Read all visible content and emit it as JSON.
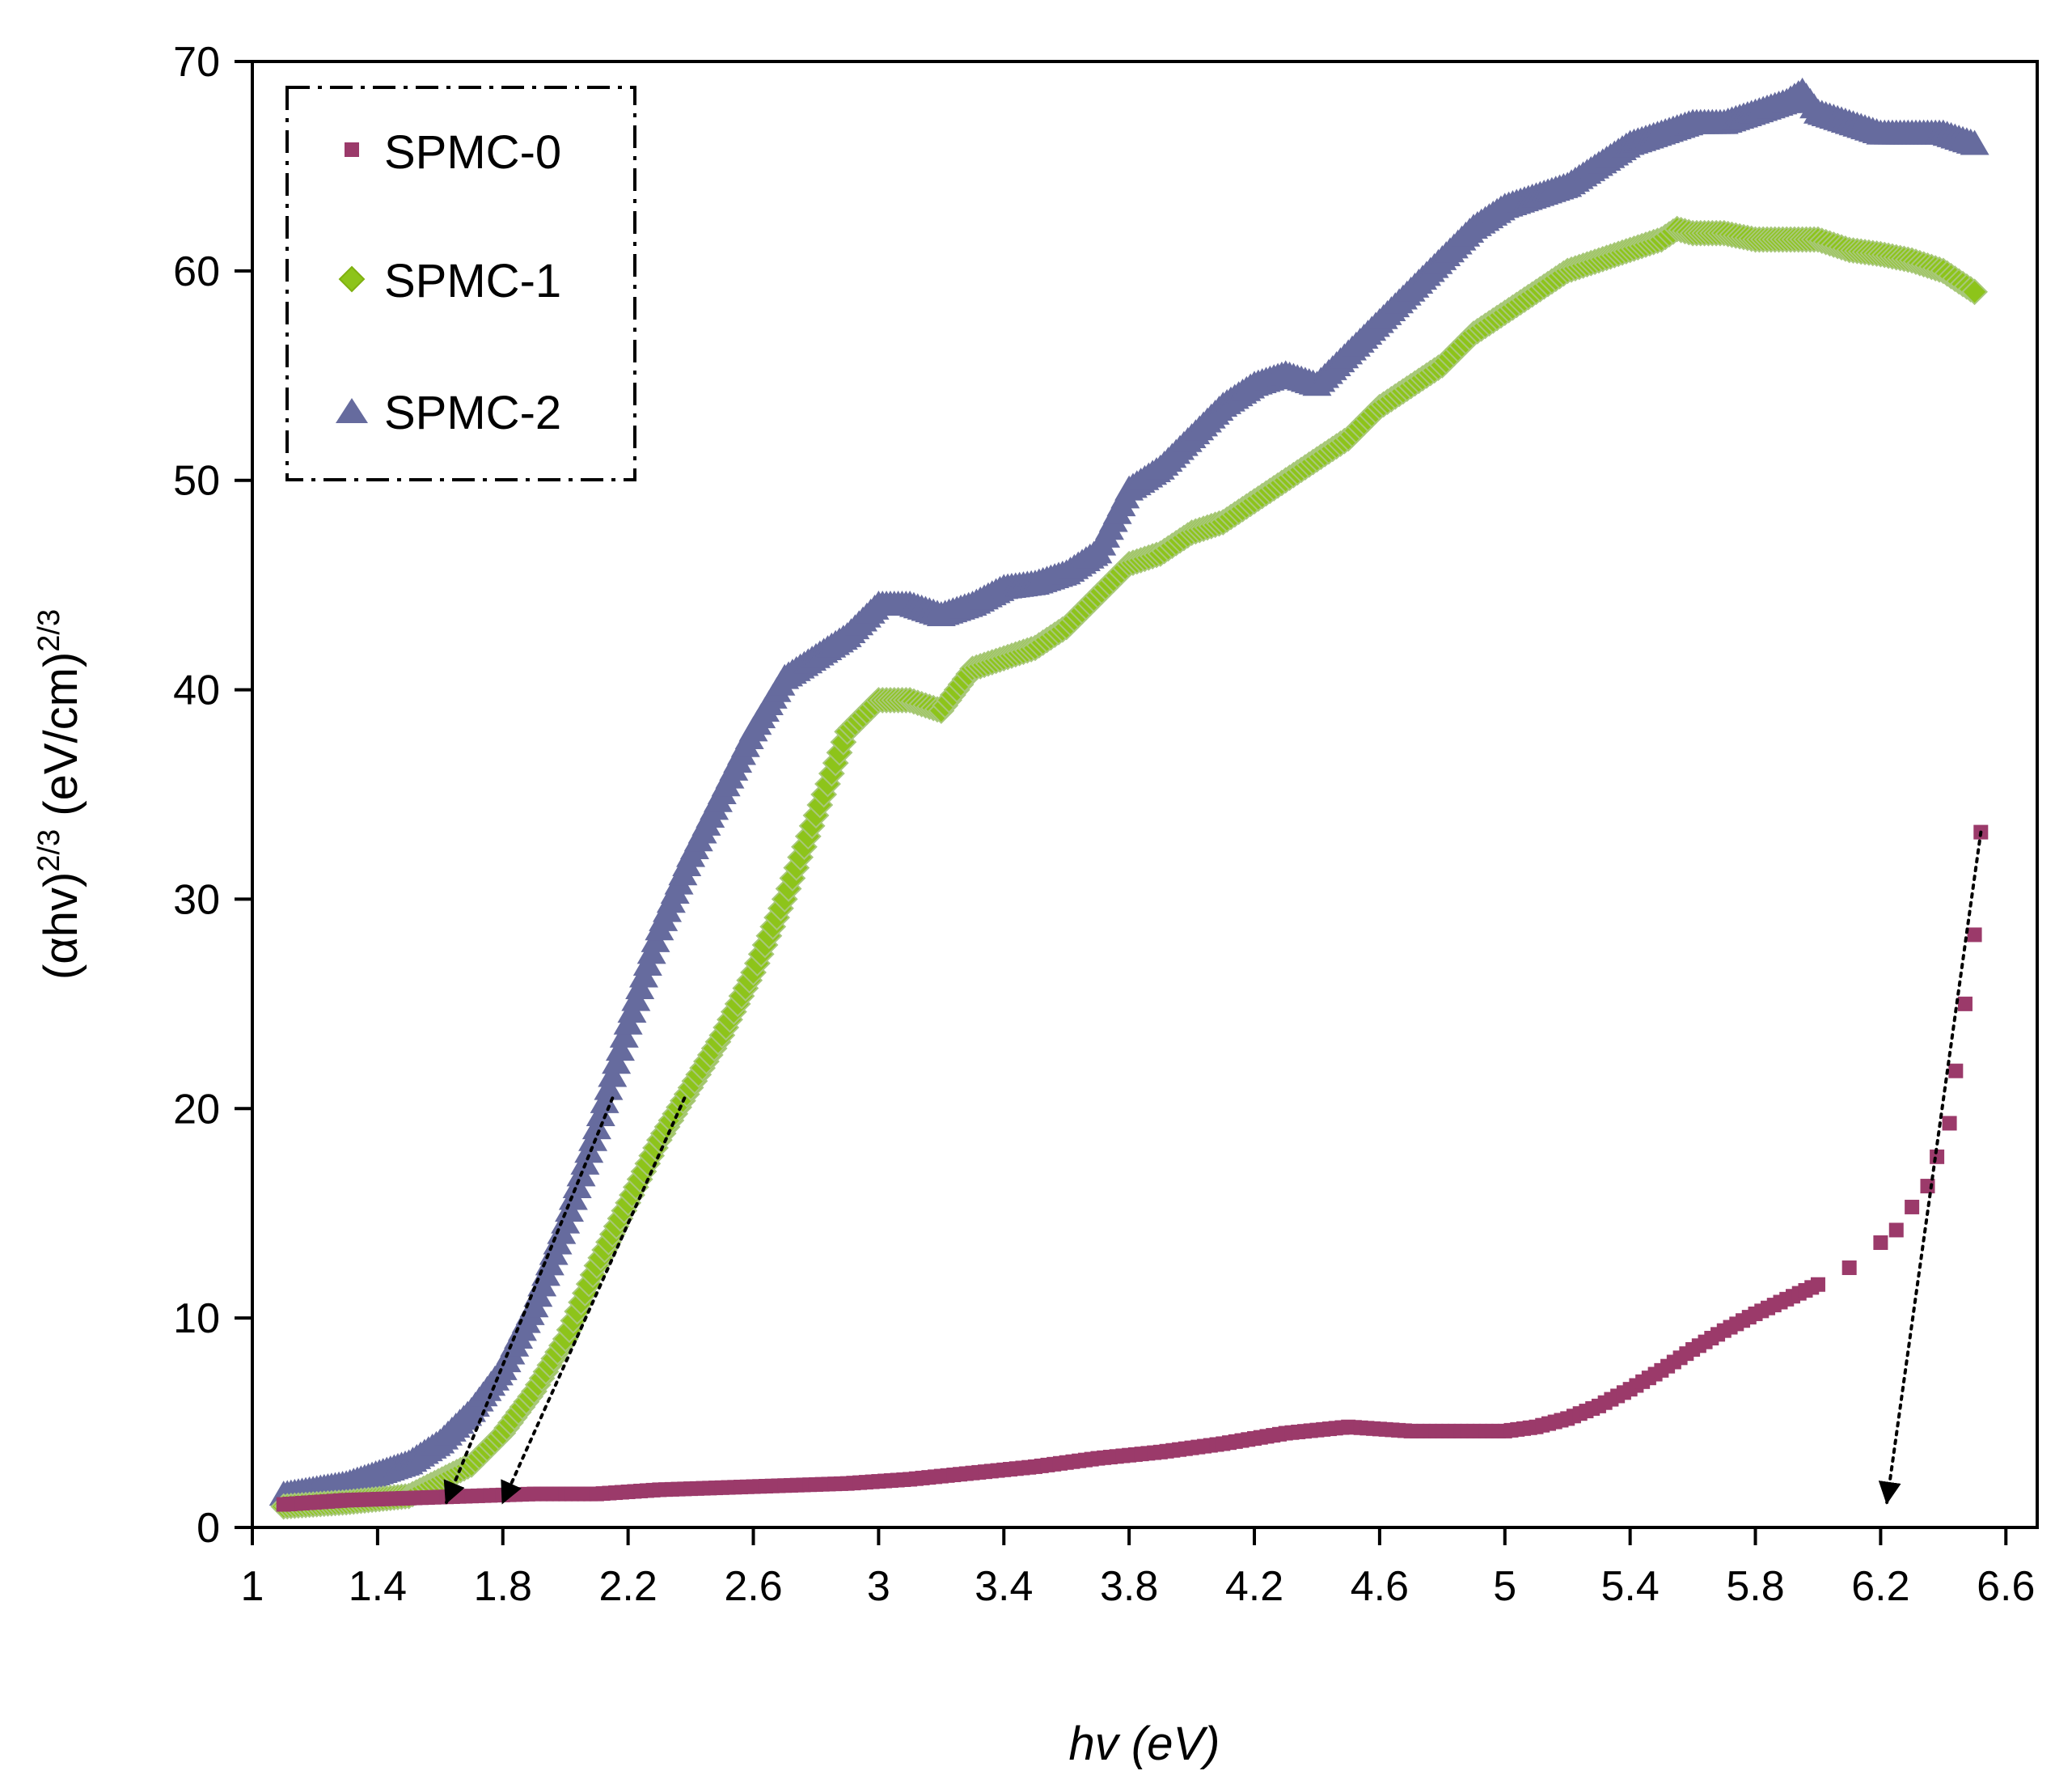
{
  "chart_data": {
    "type": "scatter",
    "title": "",
    "xlabel": "hv (eV)",
    "ylabel": "(αhv)^2/3 (eV/cm)^2/3",
    "ylabel_parts": {
      "base": "(αhv)",
      "exp1": "2/3",
      "mid": " (eV/cm)",
      "exp2": "2/3"
    },
    "xlim": [
      1,
      6.7
    ],
    "ylim": [
      0,
      70
    ],
    "x_ticks": [
      "1",
      "1.4",
      "1.8",
      "2.2",
      "2.6",
      "3",
      "3.4",
      "3.8",
      "4.2",
      "4.6",
      "5",
      "5.4",
      "5.8",
      "6.2",
      "6.6"
    ],
    "y_ticks": [
      "0",
      "10",
      "20",
      "30",
      "40",
      "50",
      "60",
      "70"
    ],
    "grid": false,
    "legend_position": "top-left",
    "series": [
      {
        "name": "SPMC-0",
        "marker": "square",
        "color": "#9b3a6a",
        "points": [
          [
            1.1,
            1.1
          ],
          [
            1.3,
            1.3
          ],
          [
            1.5,
            1.4
          ],
          [
            1.7,
            1.5
          ],
          [
            1.9,
            1.6
          ],
          [
            2.1,
            1.6
          ],
          [
            2.3,
            1.8
          ],
          [
            2.5,
            1.9
          ],
          [
            2.7,
            2.0
          ],
          [
            2.9,
            2.1
          ],
          [
            3.1,
            2.3
          ],
          [
            3.3,
            2.6
          ],
          [
            3.5,
            2.9
          ],
          [
            3.7,
            3.3
          ],
          [
            3.9,
            3.6
          ],
          [
            4.1,
            4.0
          ],
          [
            4.3,
            4.5
          ],
          [
            4.5,
            4.8
          ],
          [
            4.7,
            4.6
          ],
          [
            4.9,
            4.6
          ],
          [
            5.0,
            4.6
          ],
          [
            5.1,
            4.8
          ],
          [
            5.2,
            5.2
          ],
          [
            5.3,
            5.8
          ],
          [
            5.4,
            6.6
          ],
          [
            5.5,
            7.5
          ],
          [
            5.6,
            8.5
          ],
          [
            5.7,
            9.4
          ],
          [
            5.8,
            10.2
          ],
          [
            5.9,
            10.9
          ],
          [
            6.0,
            11.6
          ],
          [
            6.1,
            12.4
          ],
          [
            6.2,
            13.6
          ],
          [
            6.25,
            14.2
          ],
          [
            6.3,
            15.3
          ],
          [
            6.35,
            16.3
          ],
          [
            6.38,
            17.7
          ],
          [
            6.42,
            19.3
          ],
          [
            6.44,
            21.8
          ],
          [
            6.47,
            25.0
          ],
          [
            6.5,
            28.3
          ],
          [
            6.52,
            33.2
          ]
        ]
      },
      {
        "name": "SPMC-1",
        "marker": "diamond",
        "color": "#8dc41a",
        "points": [
          [
            1.1,
            1.0
          ],
          [
            1.3,
            1.2
          ],
          [
            1.5,
            1.5
          ],
          [
            1.7,
            3.0
          ],
          [
            1.8,
            4.5
          ],
          [
            1.9,
            6.5
          ],
          [
            2.0,
            9.0
          ],
          [
            2.1,
            12.5
          ],
          [
            2.2,
            15.5
          ],
          [
            2.3,
            18.5
          ],
          [
            2.4,
            21.0
          ],
          [
            2.5,
            23.5
          ],
          [
            2.6,
            26.5
          ],
          [
            2.7,
            30.0
          ],
          [
            2.8,
            34.0
          ],
          [
            2.9,
            38.0
          ],
          [
            3.0,
            39.5
          ],
          [
            3.1,
            39.5
          ],
          [
            3.2,
            39.0
          ],
          [
            3.3,
            41.0
          ],
          [
            3.4,
            41.5
          ],
          [
            3.5,
            42.0
          ],
          [
            3.6,
            43.0
          ],
          [
            3.7,
            44.5
          ],
          [
            3.8,
            46.0
          ],
          [
            3.9,
            46.5
          ],
          [
            4.0,
            47.5
          ],
          [
            4.1,
            48.0
          ],
          [
            4.2,
            49.0
          ],
          [
            4.3,
            50.0
          ],
          [
            4.4,
            51.0
          ],
          [
            4.5,
            52.0
          ],
          [
            4.6,
            53.5
          ],
          [
            4.7,
            54.5
          ],
          [
            4.8,
            55.5
          ],
          [
            4.9,
            57.0
          ],
          [
            5.0,
            58.0
          ],
          [
            5.1,
            59.0
          ],
          [
            5.2,
            60.0
          ],
          [
            5.3,
            60.5
          ],
          [
            5.4,
            61.0
          ],
          [
            5.5,
            61.5
          ],
          [
            5.55,
            62.0
          ],
          [
            5.6,
            61.8
          ],
          [
            5.7,
            61.8
          ],
          [
            5.8,
            61.5
          ],
          [
            5.9,
            61.5
          ],
          [
            6.0,
            61.5
          ],
          [
            6.1,
            61.0
          ],
          [
            6.2,
            60.8
          ],
          [
            6.3,
            60.5
          ],
          [
            6.4,
            60.0
          ],
          [
            6.5,
            59.0
          ]
        ]
      },
      {
        "name": "SPMC-2",
        "marker": "triangle",
        "color": "#666b9e",
        "points": [
          [
            1.1,
            1.5
          ],
          [
            1.3,
            2.0
          ],
          [
            1.5,
            3.0
          ],
          [
            1.6,
            4.0
          ],
          [
            1.7,
            5.5
          ],
          [
            1.8,
            7.5
          ],
          [
            1.9,
            10.5
          ],
          [
            2.0,
            14.5
          ],
          [
            2.1,
            19.0
          ],
          [
            2.2,
            24.0
          ],
          [
            2.3,
            28.5
          ],
          [
            2.4,
            32.0
          ],
          [
            2.5,
            35.0
          ],
          [
            2.6,
            38.0
          ],
          [
            2.7,
            40.5
          ],
          [
            2.8,
            41.5
          ],
          [
            2.9,
            42.5
          ],
          [
            3.0,
            44.0
          ],
          [
            3.1,
            44.0
          ],
          [
            3.2,
            43.5
          ],
          [
            3.3,
            44.0
          ],
          [
            3.4,
            44.8
          ],
          [
            3.5,
            45.0
          ],
          [
            3.6,
            45.5
          ],
          [
            3.7,
            46.5
          ],
          [
            3.8,
            49.5
          ],
          [
            3.9,
            50.5
          ],
          [
            4.0,
            52.0
          ],
          [
            4.1,
            53.5
          ],
          [
            4.2,
            54.5
          ],
          [
            4.3,
            55.0
          ],
          [
            4.4,
            54.5
          ],
          [
            4.5,
            56.0
          ],
          [
            4.6,
            57.5
          ],
          [
            4.7,
            59.0
          ],
          [
            4.8,
            60.5
          ],
          [
            4.9,
            62.0
          ],
          [
            5.0,
            63.0
          ],
          [
            5.1,
            63.5
          ],
          [
            5.2,
            64.0
          ],
          [
            5.3,
            65.0
          ],
          [
            5.4,
            66.0
          ],
          [
            5.5,
            66.5
          ],
          [
            5.6,
            67.0
          ],
          [
            5.7,
            67.0
          ],
          [
            5.8,
            67.5
          ],
          [
            5.9,
            68.0
          ],
          [
            5.95,
            68.5
          ],
          [
            6.0,
            67.5
          ],
          [
            6.1,
            67.0
          ],
          [
            6.2,
            66.5
          ],
          [
            6.3,
            66.5
          ],
          [
            6.4,
            66.5
          ],
          [
            6.5,
            66.0
          ]
        ]
      }
    ],
    "annotations": [
      {
        "type": "dotted-arrow",
        "from": [
          2.15,
          20.5
        ],
        "to": [
          1.62,
          1.2
        ]
      },
      {
        "type": "dotted-arrow",
        "from": [
          2.38,
          20.5
        ],
        "to": [
          1.8,
          1.2
        ]
      },
      {
        "type": "dotted-arrow",
        "from": [
          6.52,
          33.2
        ],
        "to": [
          6.22,
          1.2
        ]
      }
    ]
  },
  "legend": {
    "items": [
      {
        "label": "SPMC-0",
        "marker": "square",
        "color": "#9b3a6a"
      },
      {
        "label": "SPMC-1",
        "marker": "diamond",
        "color": "#8dc41a"
      },
      {
        "label": "SPMC-2",
        "marker": "triangle",
        "color": "#666b9e"
      }
    ]
  }
}
